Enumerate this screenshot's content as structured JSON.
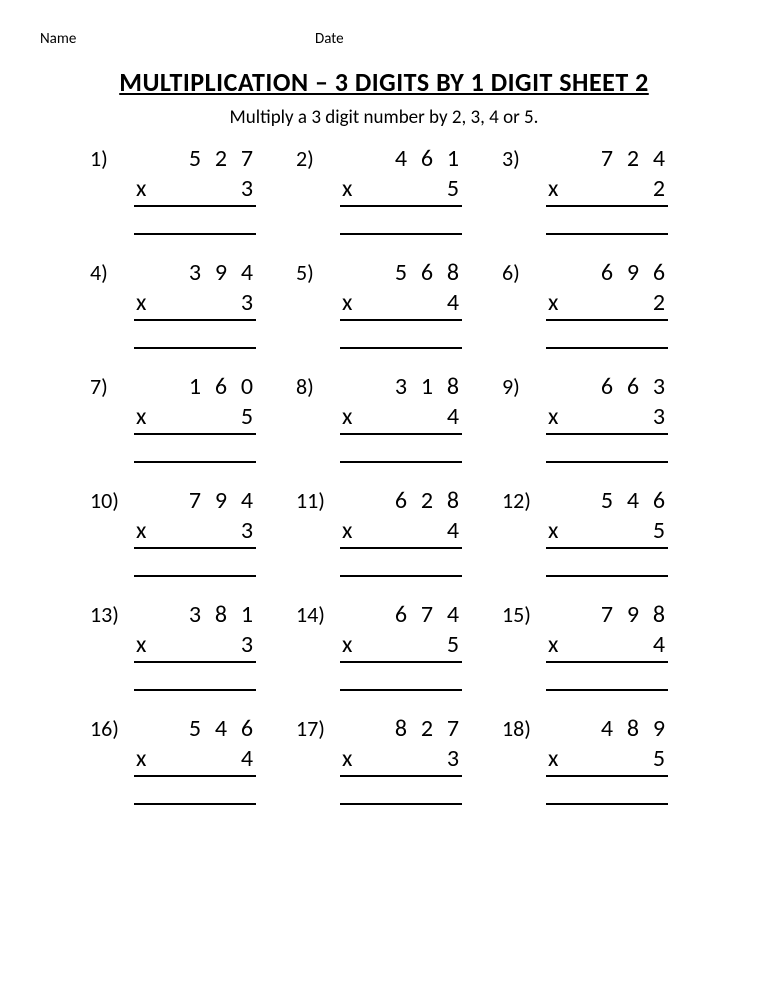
{
  "header": {
    "name_label": "Name",
    "date_label": "Date"
  },
  "title": "MULTIPLICATION – 3 DIGITS BY 1 DIGIT SHEET 2",
  "subtitle": "Multiply a 3 digit number by 2, 3, 4 or 5.",
  "operator": "x",
  "problems": [
    {
      "n": "1)",
      "d": [
        "5",
        "2",
        "7"
      ],
      "m": "3"
    },
    {
      "n": "2)",
      "d": [
        "4",
        "6",
        "1"
      ],
      "m": "5"
    },
    {
      "n": "3)",
      "d": [
        "7",
        "2",
        "4"
      ],
      "m": "2"
    },
    {
      "n": "4)",
      "d": [
        "3",
        "9",
        "4"
      ],
      "m": "3"
    },
    {
      "n": "5)",
      "d": [
        "5",
        "6",
        "8"
      ],
      "m": "4"
    },
    {
      "n": "6)",
      "d": [
        "6",
        "9",
        "6"
      ],
      "m": "2"
    },
    {
      "n": "7)",
      "d": [
        "1",
        "6",
        "0"
      ],
      "m": "5"
    },
    {
      "n": "8)",
      "d": [
        "3",
        "1",
        "8"
      ],
      "m": "4"
    },
    {
      "n": "9)",
      "d": [
        "6",
        "6",
        "3"
      ],
      "m": "3"
    },
    {
      "n": "10)",
      "d": [
        "7",
        "9",
        "4"
      ],
      "m": "3"
    },
    {
      "n": "11)",
      "d": [
        "6",
        "2",
        "8"
      ],
      "m": "4"
    },
    {
      "n": "12)",
      "d": [
        "5",
        "4",
        "6"
      ],
      "m": "5"
    },
    {
      "n": "13)",
      "d": [
        "3",
        "8",
        "1"
      ],
      "m": "3"
    },
    {
      "n": "14)",
      "d": [
        "6",
        "7",
        "4"
      ],
      "m": "5"
    },
    {
      "n": "15)",
      "d": [
        "7",
        "9",
        "8"
      ],
      "m": "4"
    },
    {
      "n": "16)",
      "d": [
        "5",
        "4",
        "6"
      ],
      "m": "4"
    },
    {
      "n": "17)",
      "d": [
        "8",
        "2",
        "7"
      ],
      "m": "3"
    },
    {
      "n": "18)",
      "d": [
        "4",
        "8",
        "9"
      ],
      "m": "5"
    }
  ]
}
